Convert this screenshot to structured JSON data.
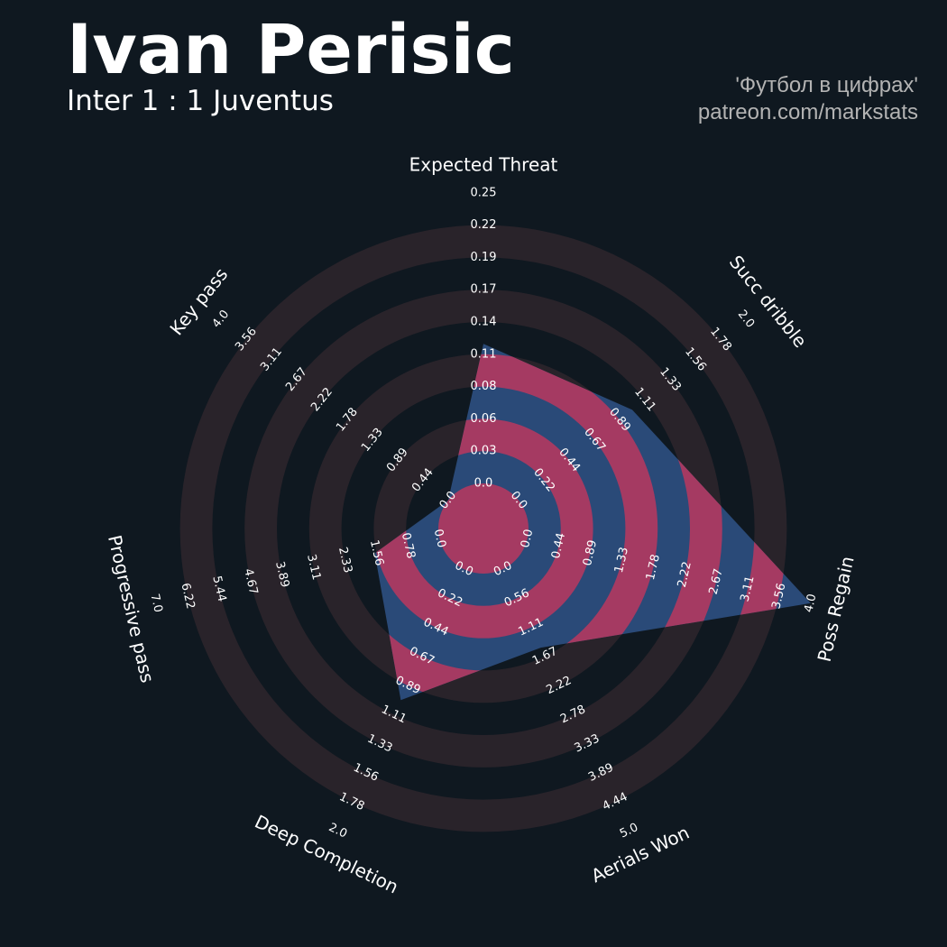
{
  "title": "Ivan Perisic",
  "subtitle": "Inter 1 : 1 Juventus",
  "credits": [
    "'Футбол в цифрах'",
    "patreon.com/markstats"
  ],
  "colors": {
    "background": "#0f1820",
    "ring": "#29232a",
    "polygon_blue": "#2a4a78",
    "polygon_pink": "#a53a62",
    "text": "#ffffff",
    "credit_text": "#b3b3b3"
  },
  "chart_data": {
    "type": "radar",
    "params": [
      "Expected Threat",
      "Succ dribble",
      "Poss Regain",
      "Aerials Won",
      "Deep Completion",
      "Progressive pass",
      "Key pass"
    ],
    "values": [
      0.12,
      1.0,
      4.0,
      1.5,
      1.0,
      1.6,
      0.0
    ],
    "ranges": [
      [
        0,
        0.25
      ],
      [
        0,
        2.0
      ],
      [
        0,
        4.0
      ],
      [
        0,
        5.0
      ],
      [
        0,
        2.0
      ],
      [
        0,
        7.0
      ],
      [
        0,
        4.0
      ]
    ],
    "ticks": [
      [
        "0.0",
        "0.03",
        "0.06",
        "0.08",
        "0.11",
        "0.14",
        "0.17",
        "0.19",
        "0.22",
        "0.25"
      ],
      [
        "0.0",
        "0.22",
        "0.44",
        "0.67",
        "0.89",
        "1.11",
        "1.33",
        "1.56",
        "1.78",
        "2.0"
      ],
      [
        "0.0",
        "0.44",
        "0.89",
        "1.33",
        "1.78",
        "2.22",
        "2.67",
        "3.11",
        "3.56",
        "4.0"
      ],
      [
        "0.0",
        "0.56",
        "1.11",
        "1.67",
        "2.22",
        "2.78",
        "3.33",
        "3.89",
        "4.44",
        "5.0"
      ],
      [
        "0.0",
        "0.22",
        "0.44",
        "0.67",
        "0.89",
        "1.11",
        "1.33",
        "1.56",
        "1.78",
        "2.0"
      ],
      [
        "0.0",
        "0.78",
        "1.56",
        "2.33",
        "3.11",
        "3.89",
        "4.67",
        "5.44",
        "6.22",
        "7.0"
      ],
      [
        "0.0",
        "0.44",
        "0.89",
        "1.33",
        "1.78",
        "2.22",
        "2.67",
        "3.11",
        "3.56",
        "4.0"
      ]
    ]
  }
}
